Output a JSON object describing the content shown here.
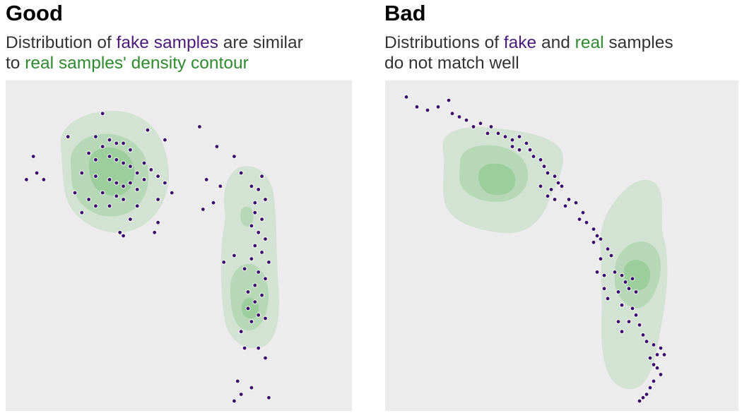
{
  "colors": {
    "fake": "#3b0f6a",
    "real": "#7cc27c",
    "background": "#ececec",
    "fake_text": "#4b1a7a",
    "real_text": "#2e8b2e"
  },
  "left": {
    "title": "Good",
    "sub": {
      "p1": "Distribution of ",
      "fake": "fake samples",
      "p2": " are similar",
      "p3": "to ",
      "real": "real samples' density contour"
    }
  },
  "right": {
    "title": "Bad",
    "sub": {
      "p1": "Distributions of ",
      "fake": "fake",
      "p2": " and ",
      "real": "real",
      "p3": " samples",
      "p4": "do not match well"
    }
  },
  "chart_data": [
    {
      "type": "scatter",
      "title": "Good",
      "xlim": [
        0,
        100
      ],
      "ylim": [
        0,
        100
      ],
      "grid": false,
      "series": [
        {
          "name": "fake samples",
          "points": [
            [
              28,
              90
            ],
            [
              41,
              85
            ],
            [
              56,
              86
            ],
            [
              46,
              82
            ],
            [
              18,
              83
            ],
            [
              26,
              83
            ],
            [
              30,
              82
            ],
            [
              28,
              80
            ],
            [
              32,
              81
            ],
            [
              34,
              81
            ],
            [
              36,
              79
            ],
            [
              24,
              78
            ],
            [
              26,
              76
            ],
            [
              30,
              77
            ],
            [
              32,
              76
            ],
            [
              34,
              75
            ],
            [
              36,
              74
            ],
            [
              40,
              75
            ],
            [
              42,
              73
            ],
            [
              38,
              72
            ],
            [
              22,
              72
            ],
            [
              26,
              71
            ],
            [
              30,
              70
            ],
            [
              32,
              69
            ],
            [
              34,
              68
            ],
            [
              36,
              69
            ],
            [
              38,
              67
            ],
            [
              28,
              66
            ],
            [
              32,
              65
            ],
            [
              40,
              70
            ],
            [
              44,
              71
            ],
            [
              46,
              69
            ],
            [
              48,
              66
            ],
            [
              44,
              64
            ],
            [
              38,
              62
            ],
            [
              34,
              64
            ],
            [
              30,
              62
            ],
            [
              26,
              62
            ],
            [
              24,
              64
            ],
            [
              20,
              66
            ],
            [
              22,
              60
            ],
            [
              36,
              58
            ],
            [
              44,
              57
            ],
            [
              8,
              77
            ],
            [
              9,
              72
            ],
            [
              11,
              70
            ],
            [
              6,
              70
            ],
            [
              33,
              54
            ],
            [
              34,
              53
            ],
            [
              43,
              54
            ],
            [
              58,
              70
            ],
            [
              62,
              68
            ],
            [
              68,
              72
            ],
            [
              66,
              77
            ],
            [
              61,
              80
            ],
            [
              60,
              63
            ],
            [
              57,
              61
            ],
            [
              74,
              71
            ],
            [
              72,
              63
            ],
            [
              71,
              68
            ],
            [
              73,
              67
            ],
            [
              75,
              64
            ],
            [
              72,
              60
            ],
            [
              74,
              58
            ],
            [
              71,
              56
            ],
            [
              73,
              54
            ],
            [
              75,
              52
            ],
            [
              72,
              50
            ],
            [
              74,
              48
            ],
            [
              71,
              46
            ],
            [
              76,
              45
            ],
            [
              63,
              45
            ],
            [
              66,
              47
            ],
            [
              69,
              43
            ],
            [
              73,
              42
            ],
            [
              75,
              40
            ],
            [
              72,
              38
            ],
            [
              70,
              36
            ],
            [
              74,
              35
            ],
            [
              72,
              33
            ],
            [
              70,
              31
            ],
            [
              73,
              29
            ],
            [
              75,
              28
            ],
            [
              71,
              27
            ],
            [
              68,
              24
            ],
            [
              69,
              19
            ],
            [
              73,
              19
            ],
            [
              75,
              16
            ],
            [
              67,
              9
            ],
            [
              71,
              7
            ],
            [
              76,
              4
            ],
            [
              66,
              3
            ],
            [
              68,
              5
            ]
          ]
        },
        {
          "name": "real samples' density contour",
          "contours": "two kernel density regions (upper-left blob, right vertical band)"
        }
      ]
    },
    {
      "type": "scatter",
      "title": "Bad",
      "xlim": [
        0,
        100
      ],
      "ylim": [
        0,
        100
      ],
      "grid": false,
      "series": [
        {
          "name": "fake",
          "points": [
            [
              6,
              95
            ],
            [
              9,
              92
            ],
            [
              12,
              91
            ],
            [
              15,
              92
            ],
            [
              18,
              94
            ],
            [
              19,
              90
            ],
            [
              21,
              89
            ],
            [
              23,
              88
            ],
            [
              25,
              86
            ],
            [
              27,
              87
            ],
            [
              30,
              86
            ],
            [
              29,
              84
            ],
            [
              32,
              84
            ],
            [
              34,
              83
            ],
            [
              36,
              82
            ],
            [
              38,
              83
            ],
            [
              40,
              81
            ],
            [
              41,
              79
            ],
            [
              38,
              79
            ],
            [
              36,
              80
            ],
            [
              42,
              77
            ],
            [
              44,
              76
            ],
            [
              45,
              74
            ],
            [
              46,
              72
            ],
            [
              48,
              71
            ],
            [
              49,
              69
            ],
            [
              50,
              68
            ],
            [
              47,
              67
            ],
            [
              44,
              68
            ],
            [
              46,
              65
            ],
            [
              48,
              64
            ],
            [
              52,
              64
            ],
            [
              51,
              62
            ],
            [
              54,
              63
            ],
            [
              56,
              60
            ],
            [
              55,
              58
            ],
            [
              57,
              57
            ],
            [
              59,
              55
            ],
            [
              60,
              53
            ],
            [
              59,
              51
            ],
            [
              61,
              52
            ],
            [
              63,
              49
            ],
            [
              64,
              47
            ],
            [
              61,
              46
            ],
            [
              60,
              42
            ],
            [
              62,
              41
            ],
            [
              65,
              42
            ],
            [
              67,
              41
            ],
            [
              68,
              39
            ],
            [
              70,
              40
            ],
            [
              69,
              37
            ],
            [
              71,
              36
            ],
            [
              66,
              36
            ],
            [
              62,
              37
            ],
            [
              63,
              34
            ],
            [
              67,
              32
            ],
            [
              70,
              31
            ],
            [
              71,
              29
            ],
            [
              72,
              26
            ],
            [
              69,
              27
            ],
            [
              66,
              27
            ],
            [
              67,
              24
            ],
            [
              73,
              23
            ],
            [
              74,
              21
            ],
            [
              76,
              20
            ],
            [
              78,
              19
            ],
            [
              77,
              17
            ],
            [
              79,
              17
            ],
            [
              75,
              16
            ],
            [
              76,
              14
            ],
            [
              77,
              13
            ],
            [
              78,
              11
            ],
            [
              76,
              9
            ],
            [
              75,
              7
            ],
            [
              74,
              5
            ],
            [
              73,
              4
            ],
            [
              72,
              3
            ]
          ]
        },
        {
          "name": "real",
          "contours": "two kernel density regions (left blob, right vertical band) offset from fake samples"
        }
      ]
    }
  ]
}
